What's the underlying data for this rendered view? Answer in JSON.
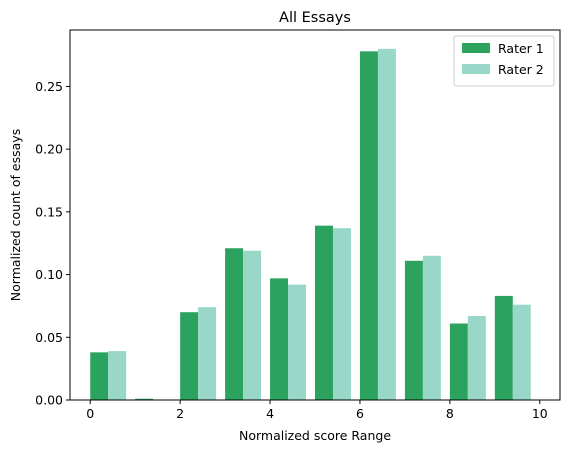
{
  "chart_data": {
    "type": "bar",
    "title": "All Essays",
    "xlabel": "Normalized score Range",
    "ylabel": "Normalized count of essays",
    "xlim": [
      -0.45,
      10.45
    ],
    "ylim": [
      0,
      0.295
    ],
    "xticks": [
      0,
      2,
      4,
      6,
      8,
      10
    ],
    "xtick_labels": [
      "0",
      "2",
      "4",
      "6",
      "8",
      "10"
    ],
    "yticks": [
      0.0,
      0.05,
      0.1,
      0.15,
      0.2,
      0.25
    ],
    "ytick_labels": [
      "0.00",
      "0.05",
      "0.10",
      "0.15",
      "0.20",
      "0.25"
    ],
    "grid": false,
    "legend_position": "top-right",
    "bin_starts": [
      0,
      1,
      2,
      3,
      4,
      5,
      6,
      7,
      8,
      9
    ],
    "bar_width": 0.4,
    "series": [
      {
        "name": "Rater 1",
        "color": "#2ca25f",
        "values": [
          0.038,
          0.001,
          0.07,
          0.121,
          0.097,
          0.139,
          0.278,
          0.111,
          0.061,
          0.083
        ]
      },
      {
        "name": "Rater 2",
        "color": "#99d8c9",
        "values": [
          0.039,
          0.0,
          0.074,
          0.119,
          0.092,
          0.137,
          0.28,
          0.115,
          0.067,
          0.076
        ]
      }
    ]
  }
}
